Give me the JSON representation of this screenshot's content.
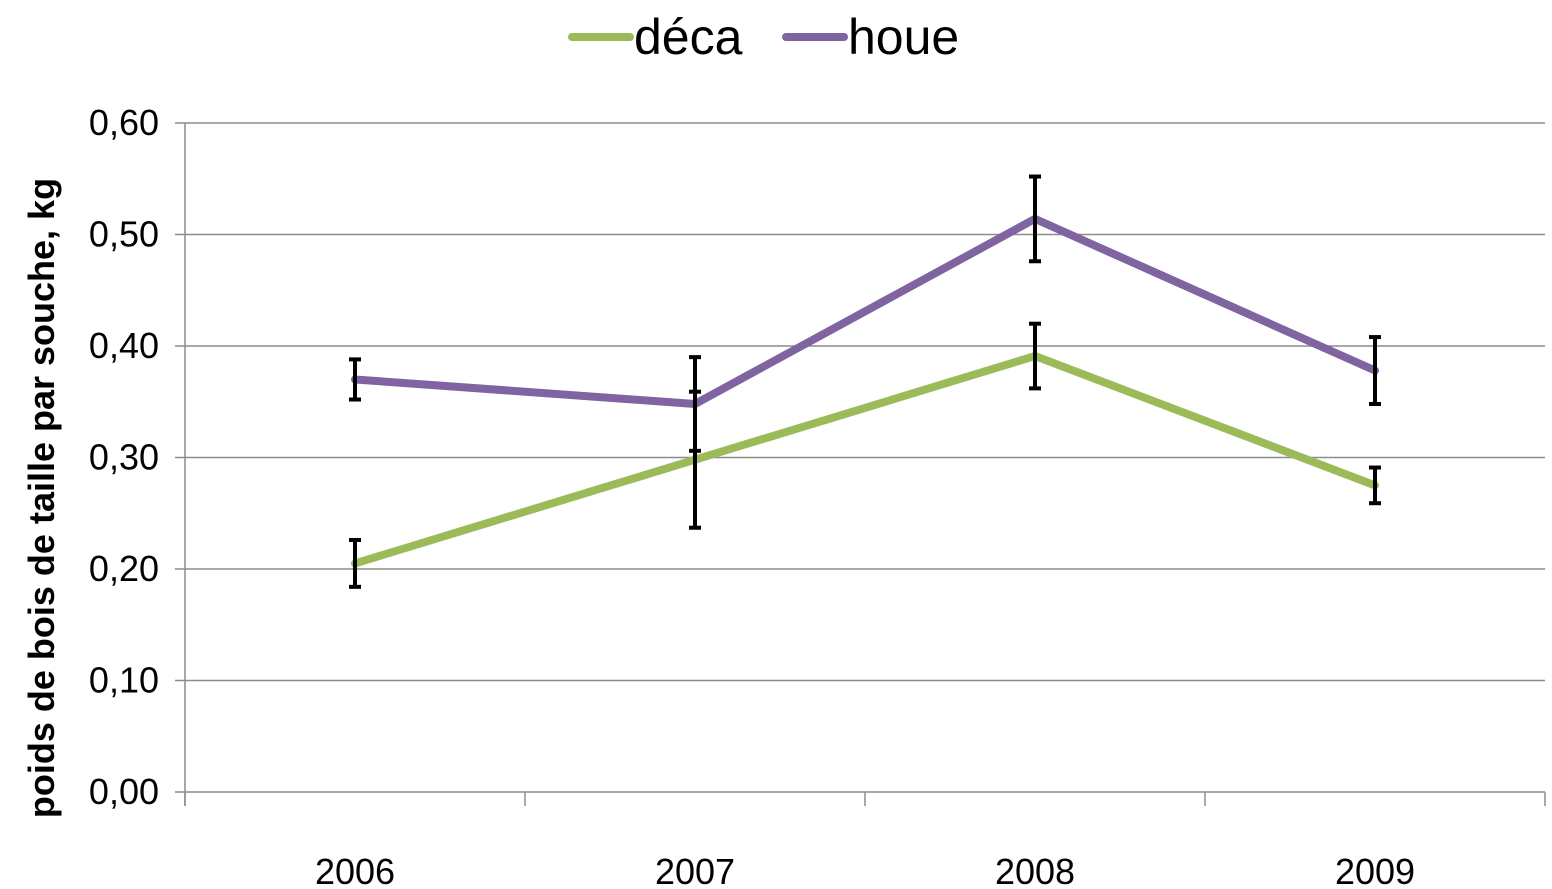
{
  "chart_data": {
    "type": "line",
    "categories": [
      "2006",
      "2007",
      "2008",
      "2009"
    ],
    "series": [
      {
        "name": "déca",
        "color": "#9BBB59",
        "values": [
          0.205,
          0.298,
          0.391,
          0.275
        ],
        "error": [
          0.021,
          0.061,
          0.029,
          0.016
        ]
      },
      {
        "name": "houe",
        "color": "#8064A2",
        "values": [
          0.37,
          0.348,
          0.514,
          0.378
        ],
        "error": [
          0.018,
          0.042,
          0.038,
          0.03
        ]
      }
    ],
    "ylabel": "poids de bois de taille par souche, kg",
    "ylim": [
      0,
      0.6
    ],
    "yticks": [
      "0,00",
      "0,10",
      "0,20",
      "0,30",
      "0,40",
      "0,50",
      "0,60"
    ],
    "grid": true,
    "legend_position": "top-center"
  }
}
